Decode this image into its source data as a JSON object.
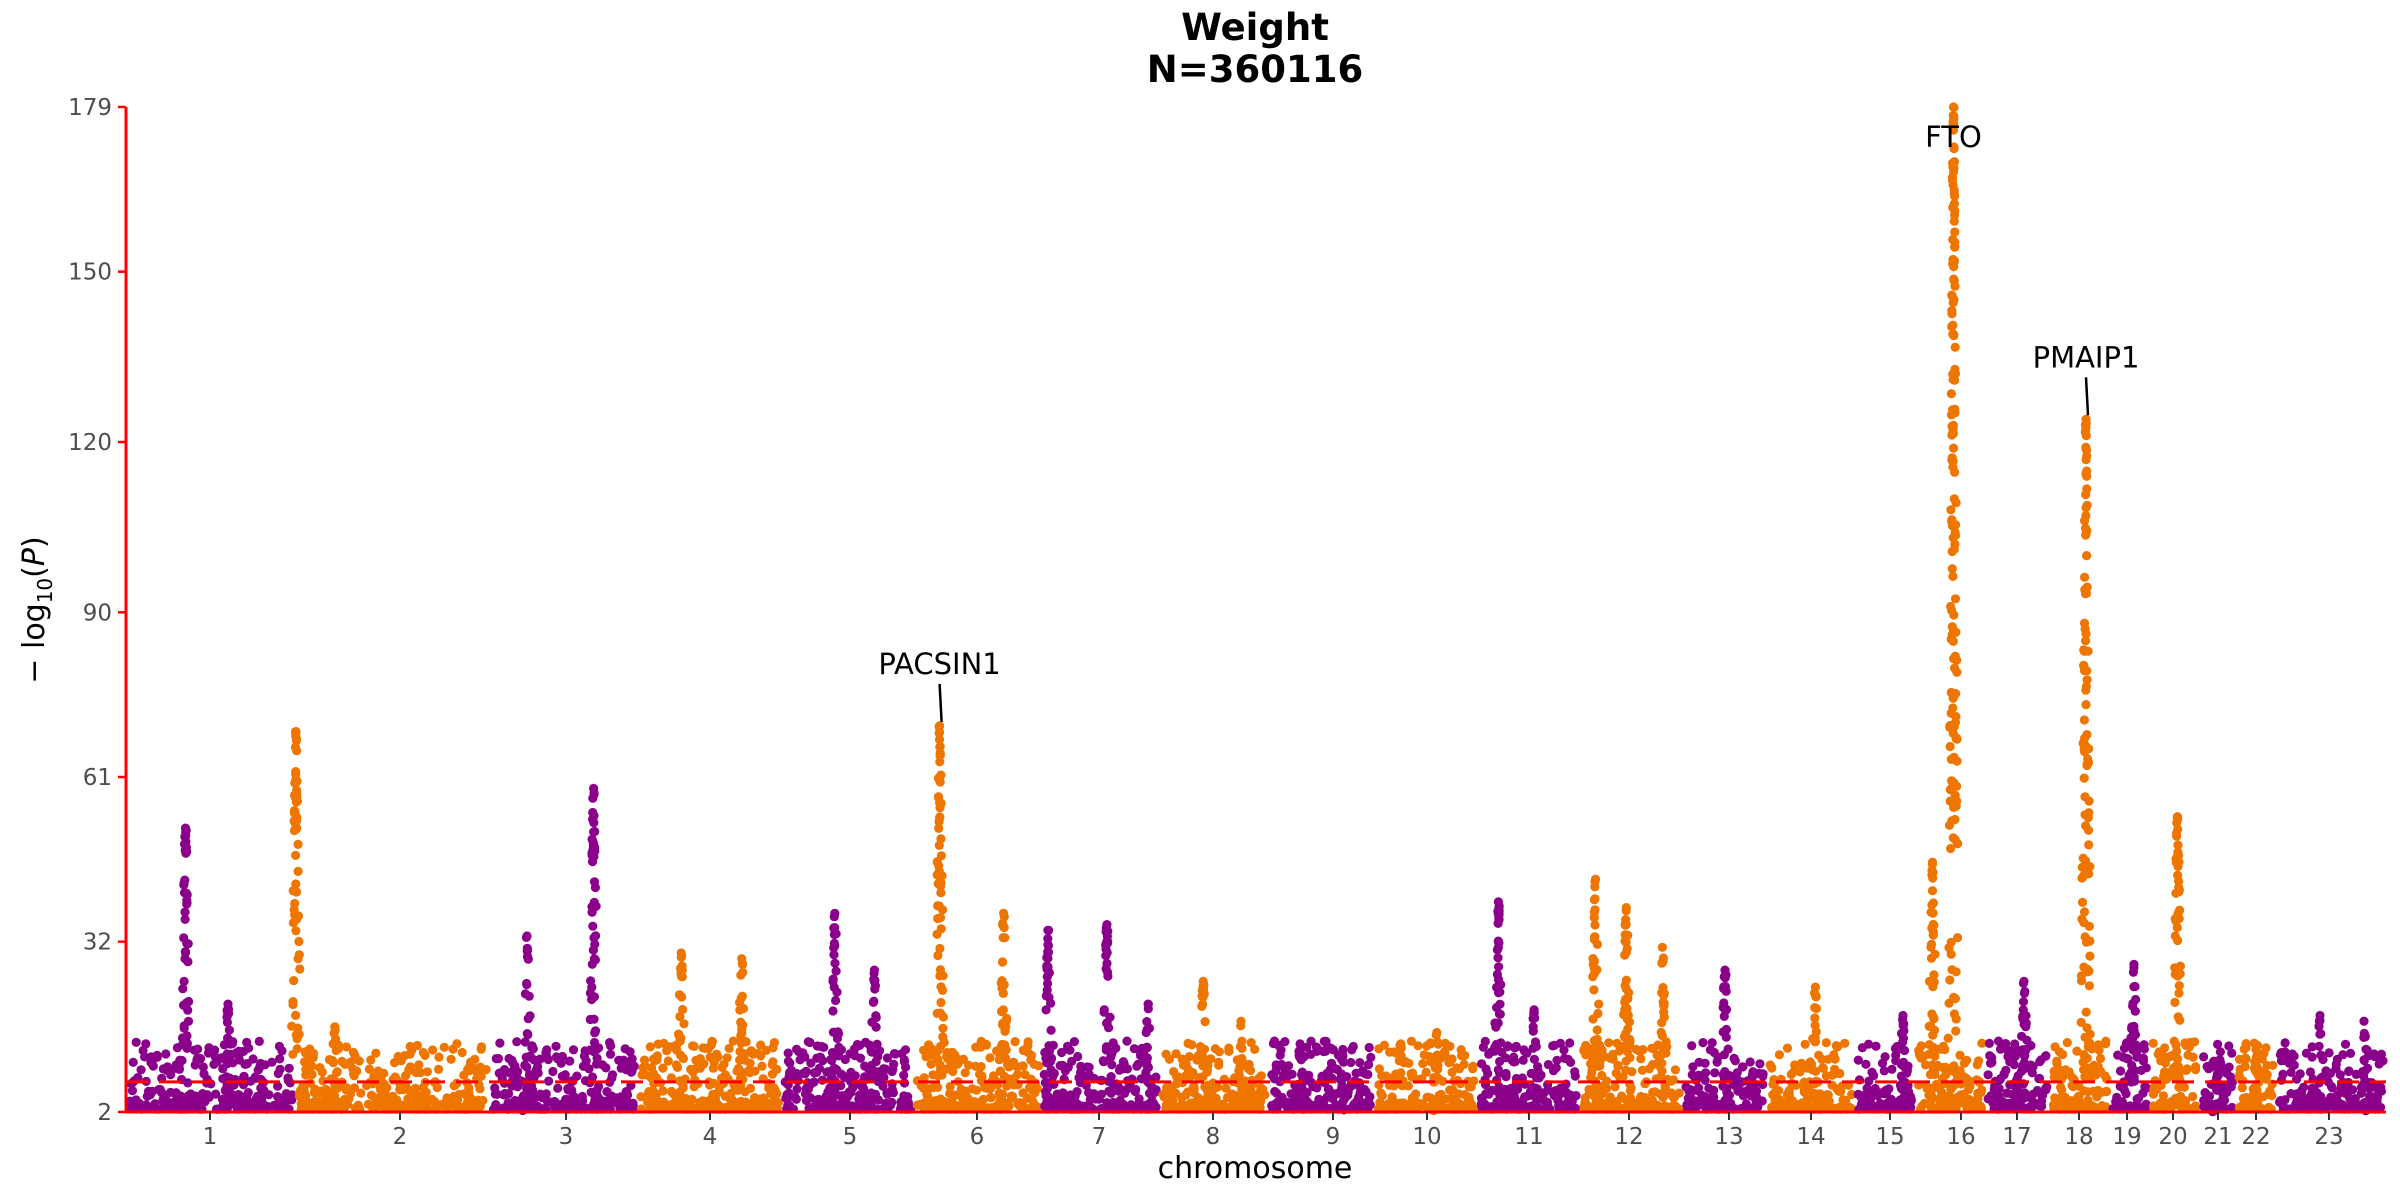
{
  "chart_data": {
    "type": "scatter",
    "subtype": "manhattan",
    "title": "Weight",
    "subtitle": "N=360116",
    "xlabel": "chromosome",
    "ylabel": "− log10(P)",
    "ylim": [
      2,
      179
    ],
    "yticks": [
      2,
      32,
      61,
      90,
      120,
      150,
      179
    ],
    "threshold": 7.3,
    "colors": {
      "odd": "#8B008B",
      "even": "#EE7600",
      "axis": "#FF0000",
      "threshold": "#FF0000"
    },
    "chromosomes": [
      {
        "label": "1",
        "color": "purple",
        "peaks": [
          [
            0.35,
            52
          ],
          [
            0.6,
            21
          ]
        ]
      },
      {
        "label": "2",
        "color": "orange",
        "peaks": [
          [
            0.0,
            69
          ],
          [
            0.2,
            17
          ]
        ]
      },
      {
        "label": "3",
        "color": "purple",
        "peaks": [
          [
            0.25,
            33
          ],
          [
            0.7,
            59
          ]
        ]
      },
      {
        "label": "4",
        "color": "orange",
        "peaks": [
          [
            0.3,
            30
          ],
          [
            0.72,
            29
          ]
        ]
      },
      {
        "label": "5",
        "color": "purple",
        "peaks": [
          [
            0.4,
            37
          ],
          [
            0.7,
            27
          ]
        ]
      },
      {
        "label": "6",
        "color": "orange",
        "peaks": [
          [
            0.2,
            70
          ],
          [
            0.7,
            37
          ]
        ]
      },
      {
        "label": "7",
        "color": "purple",
        "peaks": [
          [
            0.05,
            34
          ],
          [
            0.55,
            35
          ],
          [
            0.9,
            21
          ]
        ]
      },
      {
        "label": "8",
        "color": "orange",
        "peaks": [
          [
            0.4,
            25
          ],
          [
            0.75,
            18
          ]
        ]
      },
      {
        "label": "9",
        "color": "purple",
        "peaks": [
          [
            0.3,
            14
          ],
          [
            0.7,
            13
          ]
        ]
      },
      {
        "label": "10",
        "color": "orange",
        "peaks": [
          [
            0.25,
            14
          ],
          [
            0.6,
            16
          ]
        ]
      },
      {
        "label": "11",
        "color": "purple",
        "peaks": [
          [
            0.2,
            39
          ],
          [
            0.55,
            20
          ]
        ]
      },
      {
        "label": "12",
        "color": "orange",
        "peaks": [
          [
            0.15,
            43
          ],
          [
            0.45,
            38
          ],
          [
            0.8,
            31
          ]
        ]
      },
      {
        "label": "13",
        "color": "purple",
        "peaks": [
          [
            0.5,
            27
          ]
        ]
      },
      {
        "label": "14",
        "color": "orange",
        "peaks": [
          [
            0.55,
            24
          ]
        ]
      },
      {
        "label": "15",
        "color": "purple",
        "peaks": [
          [
            0.8,
            19
          ]
        ]
      },
      {
        "label": "16",
        "color": "orange",
        "peaks": [
          [
            0.25,
            46
          ],
          [
            0.55,
            179
          ]
        ]
      },
      {
        "label": "17",
        "color": "purple",
        "peaks": [
          [
            0.6,
            25
          ]
        ]
      },
      {
        "label": "18",
        "color": "orange",
        "peaks": [
          [
            0.6,
            124
          ]
        ]
      },
      {
        "label": "19",
        "color": "purple",
        "peaks": [
          [
            0.6,
            28
          ]
        ]
      },
      {
        "label": "20",
        "color": "orange",
        "peaks": [
          [
            0.55,
            54
          ]
        ]
      },
      {
        "label": "21",
        "color": "purple",
        "peaks": [
          [
            0.5,
            10
          ]
        ]
      },
      {
        "label": "22",
        "color": "orange",
        "peaks": [
          [
            0.5,
            13
          ]
        ]
      },
      {
        "label": "23",
        "color": "purple",
        "peaks": [
          [
            0.4,
            19
          ],
          [
            0.8,
            18
          ]
        ]
      }
    ],
    "annotations": [
      {
        "label": "PACSIN1",
        "chromosome": "6",
        "y": 70
      },
      {
        "label": "FTO",
        "chromosome": "16",
        "y": 179
      },
      {
        "label": "PMAIP1",
        "chromosome": "18",
        "y": 124
      }
    ]
  }
}
